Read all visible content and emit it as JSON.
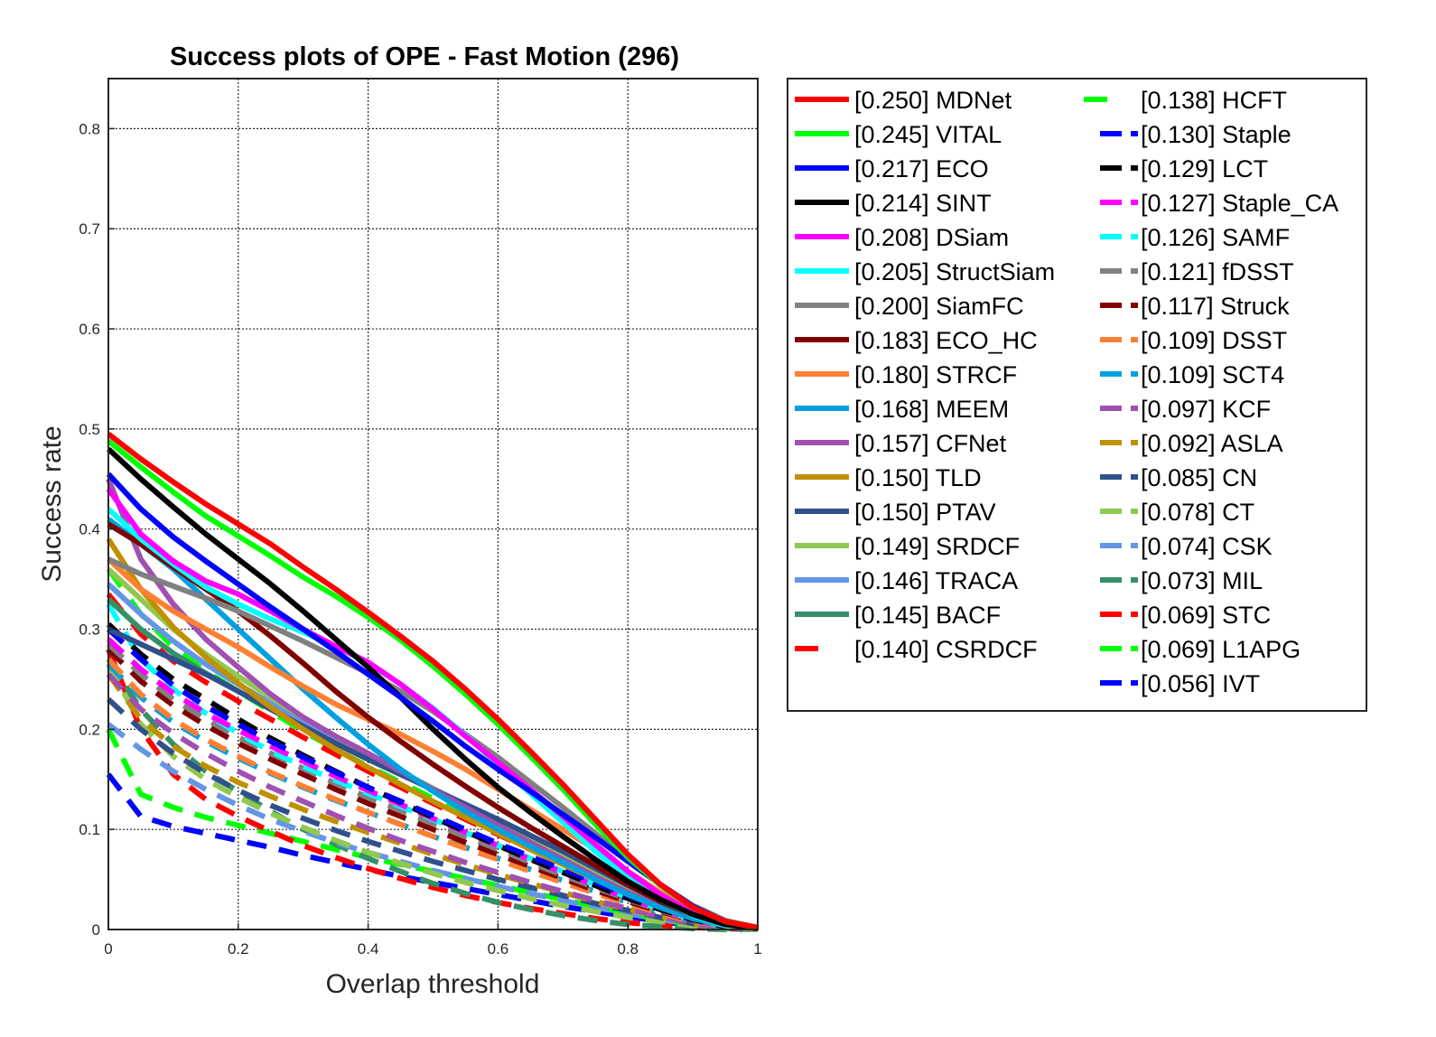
{
  "chart_data": {
    "type": "line",
    "title": "Success plots of OPE - Fast Motion (296)",
    "xlabel": "Overlap threshold",
    "ylabel": "Success rate",
    "xlim": [
      0,
      1
    ],
    "ylim": [
      0,
      0.85
    ],
    "xticks": [
      "0",
      "0.2",
      "0.4",
      "0.6",
      "0.8",
      "1"
    ],
    "yticks": [
      "0",
      "0.1",
      "0.2",
      "0.3",
      "0.4",
      "0.5",
      "0.6",
      "0.7",
      "0.8"
    ],
    "grid": true,
    "legend_position": "outside-right",
    "x": [
      0,
      0.05,
      0.1,
      0.15,
      0.2,
      0.25,
      0.3,
      0.35,
      0.4,
      0.45,
      0.5,
      0.55,
      0.6,
      0.65,
      0.7,
      0.75,
      0.8,
      0.85,
      0.9,
      0.95,
      1
    ],
    "series": [
      {
        "name": "[0.250] MDNet",
        "color": "#ff0000",
        "style": "solid",
        "values": [
          0.495,
          0.47,
          0.447,
          0.425,
          0.405,
          0.385,
          0.362,
          0.34,
          0.317,
          0.293,
          0.268,
          0.24,
          0.21,
          0.178,
          0.145,
          0.11,
          0.075,
          0.045,
          0.022,
          0.008,
          0.002
        ]
      },
      {
        "name": "[0.245] VITAL",
        "color": "#00ff00",
        "style": "solid",
        "values": [
          0.488,
          0.462,
          0.437,
          0.413,
          0.393,
          0.373,
          0.352,
          0.333,
          0.312,
          0.289,
          0.263,
          0.235,
          0.205,
          0.173,
          0.14,
          0.105,
          0.072,
          0.044,
          0.022,
          0.008,
          0.002
        ]
      },
      {
        "name": "[0.217] ECO",
        "color": "#0000ff",
        "style": "solid",
        "values": [
          0.455,
          0.42,
          0.392,
          0.368,
          0.345,
          0.322,
          0.3,
          0.278,
          0.255,
          0.232,
          0.208,
          0.183,
          0.16,
          0.138,
          0.115,
          0.092,
          0.068,
          0.045,
          0.023,
          0.008,
          0.002
        ]
      },
      {
        "name": "[0.214] SINT",
        "color": "#000000",
        "style": "solid",
        "values": [
          0.48,
          0.45,
          0.422,
          0.395,
          0.37,
          0.345,
          0.318,
          0.29,
          0.262,
          0.232,
          0.2,
          0.17,
          0.142,
          0.117,
          0.093,
          0.07,
          0.048,
          0.03,
          0.015,
          0.005,
          0.001
        ]
      },
      {
        "name": "[0.208] DSiam",
        "color": "#ff00ff",
        "style": "solid",
        "values": [
          0.44,
          0.395,
          0.368,
          0.348,
          0.335,
          0.318,
          0.3,
          0.283,
          0.267,
          0.245,
          0.22,
          0.193,
          0.167,
          0.14,
          0.113,
          0.085,
          0.058,
          0.035,
          0.017,
          0.006,
          0.001
        ]
      },
      {
        "name": "[0.205] StructSiam",
        "color": "#00ffff",
        "style": "solid",
        "values": [
          0.42,
          0.39,
          0.365,
          0.342,
          0.325,
          0.31,
          0.297,
          0.283,
          0.266,
          0.245,
          0.221,
          0.194,
          0.165,
          0.136,
          0.107,
          0.078,
          0.052,
          0.03,
          0.014,
          0.004,
          0.001
        ]
      },
      {
        "name": "[0.200] SiamFC",
        "color": "#808080",
        "style": "solid",
        "values": [
          0.37,
          0.355,
          0.343,
          0.331,
          0.318,
          0.303,
          0.288,
          0.272,
          0.256,
          0.238,
          0.218,
          0.195,
          0.172,
          0.147,
          0.122,
          0.096,
          0.07,
          0.045,
          0.024,
          0.009,
          0.002
        ]
      },
      {
        "name": "[0.183] ECO_HC",
        "color": "#800000",
        "style": "solid",
        "values": [
          0.405,
          0.385,
          0.362,
          0.34,
          0.318,
          0.293,
          0.266,
          0.238,
          0.212,
          0.188,
          0.165,
          0.143,
          0.122,
          0.102,
          0.083,
          0.064,
          0.045,
          0.028,
          0.014,
          0.005,
          0.001
        ]
      },
      {
        "name": "[0.180] STRCF",
        "color": "#ff8033",
        "style": "solid",
        "values": [
          0.37,
          0.34,
          0.318,
          0.3,
          0.282,
          0.262,
          0.243,
          0.225,
          0.21,
          0.195,
          0.178,
          0.16,
          0.14,
          0.12,
          0.1,
          0.08,
          0.058,
          0.037,
          0.019,
          0.006,
          0.001
        ]
      },
      {
        "name": "[0.168] MEEM",
        "color": "#00a0e0",
        "style": "solid",
        "values": [
          0.41,
          0.385,
          0.36,
          0.33,
          0.3,
          0.27,
          0.24,
          0.212,
          0.185,
          0.16,
          0.138,
          0.118,
          0.1,
          0.083,
          0.067,
          0.05,
          0.035,
          0.022,
          0.011,
          0.004,
          0.001
        ]
      },
      {
        "name": "[0.157] CFNet",
        "color": "#a050b0",
        "style": "solid",
        "values": [
          0.45,
          0.37,
          0.325,
          0.29,
          0.262,
          0.235,
          0.212,
          0.193,
          0.176,
          0.158,
          0.14,
          0.122,
          0.104,
          0.087,
          0.07,
          0.053,
          0.037,
          0.023,
          0.012,
          0.004,
          0.001
        ]
      },
      {
        "name": "[0.150] TLD",
        "color": "#c09000",
        "style": "solid",
        "values": [
          0.39,
          0.34,
          0.302,
          0.272,
          0.246,
          0.222,
          0.2,
          0.18,
          0.162,
          0.145,
          0.128,
          0.112,
          0.096,
          0.08,
          0.065,
          0.05,
          0.035,
          0.022,
          0.011,
          0.004,
          0.001
        ]
      },
      {
        "name": "[0.150] PTAV",
        "color": "#30508c",
        "style": "solid",
        "values": [
          0.3,
          0.285,
          0.27,
          0.255,
          0.238,
          0.22,
          0.203,
          0.186,
          0.17,
          0.155,
          0.14,
          0.125,
          0.11,
          0.094,
          0.078,
          0.061,
          0.044,
          0.028,
          0.014,
          0.005,
          0.001
        ]
      },
      {
        "name": "[0.149] SRDCF",
        "color": "#90c850",
        "style": "solid",
        "values": [
          0.36,
          0.33,
          0.3,
          0.275,
          0.253,
          0.232,
          0.212,
          0.193,
          0.175,
          0.158,
          0.141,
          0.124,
          0.107,
          0.09,
          0.073,
          0.056,
          0.039,
          0.024,
          0.012,
          0.004,
          0.001
        ]
      },
      {
        "name": "[0.146] TRACA",
        "color": "#6496e6",
        "style": "solid",
        "values": [
          0.345,
          0.315,
          0.288,
          0.265,
          0.245,
          0.226,
          0.208,
          0.19,
          0.173,
          0.156,
          0.139,
          0.122,
          0.105,
          0.088,
          0.071,
          0.054,
          0.038,
          0.023,
          0.011,
          0.004,
          0.001
        ]
      },
      {
        "name": "[0.145] BACF",
        "color": "#359068",
        "style": "solid",
        "values": [
          0.33,
          0.3,
          0.276,
          0.256,
          0.238,
          0.22,
          0.203,
          0.186,
          0.17,
          0.155,
          0.14,
          0.124,
          0.108,
          0.091,
          0.074,
          0.057,
          0.04,
          0.025,
          0.012,
          0.004,
          0.001
        ]
      },
      {
        "name": "[0.140] CSRDCF",
        "color": "#ff0000",
        "style": "wide-dash",
        "values": [
          0.335,
          0.295,
          0.268,
          0.247,
          0.228,
          0.21,
          0.192,
          0.175,
          0.158,
          0.142,
          0.126,
          0.11,
          0.095,
          0.08,
          0.065,
          0.05,
          0.035,
          0.022,
          0.011,
          0.004,
          0.001
        ]
      },
      {
        "name": "[0.138] HCFT",
        "color": "#00ff00",
        "style": "wide-dash",
        "values": [
          0.36,
          0.315,
          0.282,
          0.258,
          0.238,
          0.218,
          0.198,
          0.18,
          0.163,
          0.147,
          0.131,
          0.115,
          0.099,
          0.083,
          0.067,
          0.052,
          0.037,
          0.023,
          0.011,
          0.004,
          0.001
        ]
      },
      {
        "name": "[0.130] Staple",
        "color": "#0000ff",
        "style": "dash",
        "values": [
          0.3,
          0.27,
          0.244,
          0.223,
          0.205,
          0.188,
          0.172,
          0.157,
          0.142,
          0.128,
          0.114,
          0.1,
          0.086,
          0.073,
          0.06,
          0.047,
          0.034,
          0.022,
          0.011,
          0.004,
          0.001
        ]
      },
      {
        "name": "[0.129] LCT",
        "color": "#000000",
        "style": "dash",
        "values": [
          0.305,
          0.275,
          0.25,
          0.23,
          0.21,
          0.191,
          0.174,
          0.158,
          0.142,
          0.127,
          0.112,
          0.098,
          0.084,
          0.07,
          0.057,
          0.044,
          0.031,
          0.02,
          0.01,
          0.003,
          0.001
        ]
      },
      {
        "name": "[0.127] Staple_CA",
        "color": "#ff00ff",
        "style": "dash",
        "values": [
          0.29,
          0.26,
          0.236,
          0.216,
          0.199,
          0.183,
          0.168,
          0.153,
          0.139,
          0.125,
          0.111,
          0.097,
          0.084,
          0.07,
          0.057,
          0.044,
          0.031,
          0.02,
          0.01,
          0.003,
          0.001
        ]
      },
      {
        "name": "[0.126] SAMF",
        "color": "#00ffff",
        "style": "dash",
        "values": [
          0.325,
          0.27,
          0.24,
          0.216,
          0.196,
          0.178,
          0.163,
          0.149,
          0.136,
          0.123,
          0.11,
          0.097,
          0.084,
          0.071,
          0.058,
          0.045,
          0.032,
          0.02,
          0.01,
          0.003,
          0.001
        ]
      },
      {
        "name": "[0.121] fDSST",
        "color": "#808080",
        "style": "dash",
        "values": [
          0.285,
          0.255,
          0.23,
          0.21,
          0.192,
          0.176,
          0.161,
          0.146,
          0.132,
          0.119,
          0.106,
          0.093,
          0.08,
          0.067,
          0.054,
          0.042,
          0.03,
          0.019,
          0.009,
          0.003,
          0.001
        ]
      },
      {
        "name": "[0.117] Struck",
        "color": "#800000",
        "style": "dash",
        "values": [
          0.28,
          0.248,
          0.224,
          0.204,
          0.186,
          0.17,
          0.155,
          0.14,
          0.126,
          0.113,
          0.1,
          0.087,
          0.075,
          0.063,
          0.051,
          0.039,
          0.028,
          0.018,
          0.009,
          0.003,
          0.001
        ]
      },
      {
        "name": "[0.109] DSST",
        "color": "#ff8033",
        "style": "dash",
        "values": [
          0.27,
          0.235,
          0.21,
          0.19,
          0.173,
          0.157,
          0.143,
          0.13,
          0.117,
          0.105,
          0.093,
          0.081,
          0.07,
          0.058,
          0.047,
          0.036,
          0.026,
          0.016,
          0.008,
          0.003,
          0.001
        ]
      },
      {
        "name": "[0.109] SCT4",
        "color": "#00a0e0",
        "style": "dash",
        "values": [
          0.265,
          0.232,
          0.207,
          0.188,
          0.171,
          0.156,
          0.142,
          0.129,
          0.117,
          0.105,
          0.093,
          0.082,
          0.071,
          0.06,
          0.049,
          0.038,
          0.027,
          0.017,
          0.008,
          0.003,
          0.001
        ]
      },
      {
        "name": "[0.097] KCF",
        "color": "#a050b0",
        "style": "dash",
        "values": [
          0.255,
          0.22,
          0.196,
          0.176,
          0.158,
          0.142,
          0.128,
          0.114,
          0.101,
          0.089,
          0.078,
          0.067,
          0.057,
          0.047,
          0.038,
          0.029,
          0.021,
          0.013,
          0.006,
          0.002,
          0.001
        ]
      },
      {
        "name": "[0.092] ASLA",
        "color": "#c09000",
        "style": "dash",
        "values": [
          0.255,
          0.21,
          0.183,
          0.163,
          0.147,
          0.133,
          0.12,
          0.108,
          0.097,
          0.086,
          0.075,
          0.065,
          0.055,
          0.046,
          0.037,
          0.028,
          0.02,
          0.013,
          0.006,
          0.002,
          0.001
        ]
      },
      {
        "name": "[0.085] CN",
        "color": "#30508c",
        "style": "dash",
        "values": [
          0.23,
          0.2,
          0.176,
          0.156,
          0.139,
          0.124,
          0.111,
          0.099,
          0.088,
          0.078,
          0.068,
          0.059,
          0.05,
          0.042,
          0.034,
          0.026,
          0.019,
          0.012,
          0.006,
          0.002,
          0.001
        ]
      },
      {
        "name": "[0.078] CT",
        "color": "#90c850",
        "style": "dash",
        "values": [
          0.265,
          0.205,
          0.173,
          0.15,
          0.132,
          0.116,
          0.102,
          0.089,
          0.077,
          0.066,
          0.056,
          0.047,
          0.039,
          0.031,
          0.024,
          0.018,
          0.012,
          0.008,
          0.004,
          0.001,
          0.0
        ]
      },
      {
        "name": "[0.074] CSK",
        "color": "#6496e6",
        "style": "dash",
        "values": [
          0.205,
          0.18,
          0.158,
          0.14,
          0.124,
          0.11,
          0.098,
          0.087,
          0.077,
          0.068,
          0.059,
          0.051,
          0.043,
          0.036,
          0.029,
          0.022,
          0.016,
          0.01,
          0.005,
          0.002,
          0.0
        ]
      },
      {
        "name": "[0.073] MIL",
        "color": "#359068",
        "style": "dash",
        "values": [
          0.27,
          0.22,
          0.185,
          0.158,
          0.138,
          0.118,
          0.1,
          0.085,
          0.071,
          0.058,
          0.046,
          0.036,
          0.027,
          0.02,
          0.014,
          0.009,
          0.005,
          0.003,
          0.001,
          0.0,
          0.0
        ]
      },
      {
        "name": "[0.069] STC",
        "color": "#ff0000",
        "style": "dash",
        "values": [
          0.28,
          0.2,
          0.155,
          0.13,
          0.113,
          0.098,
          0.084,
          0.072,
          0.061,
          0.051,
          0.042,
          0.034,
          0.027,
          0.021,
          0.016,
          0.011,
          0.007,
          0.004,
          0.002,
          0.001,
          0.0
        ]
      },
      {
        "name": "[0.069] L1APG",
        "color": "#00ff00",
        "style": "dash",
        "values": [
          0.2,
          0.135,
          0.122,
          0.112,
          0.104,
          0.096,
          0.088,
          0.08,
          0.072,
          0.065,
          0.058,
          0.051,
          0.044,
          0.037,
          0.03,
          0.023,
          0.016,
          0.01,
          0.005,
          0.002,
          0.0
        ]
      },
      {
        "name": "[0.056] IVT",
        "color": "#0000ff",
        "style": "dash",
        "values": [
          0.155,
          0.113,
          0.103,
          0.096,
          0.089,
          0.082,
          0.074,
          0.067,
          0.06,
          0.053,
          0.047,
          0.041,
          0.035,
          0.029,
          0.023,
          0.018,
          0.013,
          0.008,
          0.004,
          0.001,
          0.0
        ]
      }
    ]
  }
}
